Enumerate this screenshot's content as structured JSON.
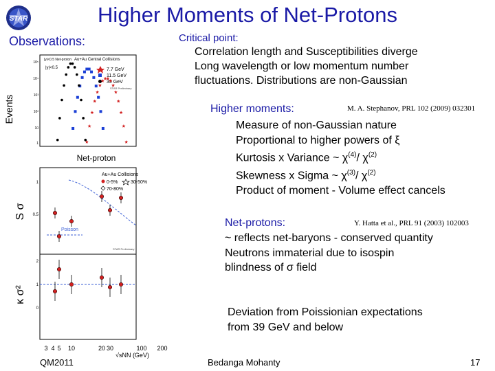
{
  "slide": {
    "title": "Higher Moments of Net-Protons",
    "logo_text": "STAR",
    "observations_label": "Observations:",
    "critical_point": {
      "heading": "Critical point:",
      "lines": [
        "Correlation length and Susceptibilities diverge",
        "Long wavelength or low momentum number",
        "fluctuations. Distributions are non-Gaussian"
      ]
    },
    "higher_moments": {
      "heading": "Higher moments:",
      "reference": "M. A. Stephanov, PRL 102 (2009) 032301",
      "lines": [
        "Measure of non-Gaussian nature",
        "Proportional to higher powers of ξ",
        "Kurtosis x Variance ~ χ",
        "(4)",
        "/ χ",
        "(2)",
        "Skewness x Sigma ~ χ",
        "(3)",
        "/ χ",
        "(2)",
        "Product of moment - Volume effect cancels"
      ]
    },
    "net_protons": {
      "heading": "Net-protons:",
      "reference": "Y. Hatta et al., PRL 91 (2003) 102003",
      "lines": [
        "~ reflects net-baryons - conserved quantity",
        "Neutrons immaterial due to isospin",
        "blindness of σ field"
      ]
    },
    "deviation": {
      "lines": [
        "Deviation from Poissionian expectations",
        "from 39 GeV and below"
      ]
    },
    "footer": {
      "conference": "QM2011",
      "author": "Bedanga Mohanty",
      "page": "17"
    }
  },
  "figure": {
    "top_panel": {
      "ylabel": "Events",
      "xlabel": "Net-proton",
      "legend_title": "Au+Au Central Collisions",
      "y_annotation": "|y|<0.5",
      "legend": [
        "7.7 GeV",
        "11.5 GeV",
        "39 GeV"
      ],
      "preliminary": "STAR Preliminary",
      "yticks": [
        "10⁵",
        "10⁴",
        "10³",
        "10²",
        "10",
        "1"
      ]
    },
    "middle_panel": {
      "ylabel": "S σ",
      "legend_title": "Au+Au Collisions",
      "legend": [
        "0-5%",
        "30-50%",
        "70-80%"
      ],
      "poisson_label": "Poisson",
      "preliminary": "STAR Preliminary",
      "yticks": [
        "1",
        "0.5"
      ]
    },
    "bottom_panel": {
      "ylabel": "κ σ²",
      "yticks": [
        "2",
        "1",
        "0"
      ],
      "xticks": [
        "3",
        "4",
        "5",
        "10",
        "20",
        "30",
        "100",
        "200"
      ],
      "xlabel": "√sNN (GeV)"
    },
    "colors": {
      "red": "#d22020",
      "blue": "#1b3fd6",
      "black": "#000000",
      "poisson": "#3b5fd6",
      "title_blue": "#1a1aa6"
    }
  }
}
